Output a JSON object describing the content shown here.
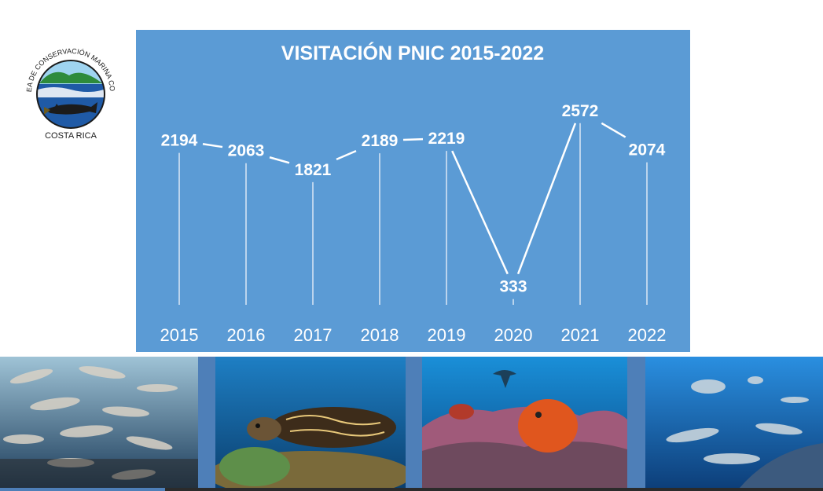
{
  "logo": {
    "ring_text": "AREA DE CONSERVACIÓN MARINA COCO",
    "country_text": "COSTA RICA",
    "icon": "hammerhead-shark-emblem"
  },
  "chart_data": {
    "type": "line",
    "title": "VISITACIÓN PNIC 2015-2022",
    "xlabel": "",
    "ylabel": "",
    "categories": [
      "2015",
      "2016",
      "2017",
      "2018",
      "2019",
      "2020",
      "2021",
      "2022"
    ],
    "series": [
      {
        "values": [
          2194,
          2063,
          1821,
          2189,
          2219,
          333,
          2572,
          2074
        ]
      }
    ],
    "ylim": [
      0,
      2700
    ],
    "grid": "vertical drop lines",
    "legend": "none",
    "background_color": "#5b9bd5",
    "line_color": "#ffffff"
  },
  "photos": [
    {
      "name": "whitetip-reef-sharks-school",
      "icon": "shark-school-photo"
    },
    {
      "name": "hawksbill-sea-turtle",
      "icon": "sea-turtle-photo"
    },
    {
      "name": "frogfish-and-hammerhead",
      "icon": "frogfish-photo"
    },
    {
      "name": "jacks-and-sharks",
      "icon": "reef-sharks-photo"
    }
  ]
}
